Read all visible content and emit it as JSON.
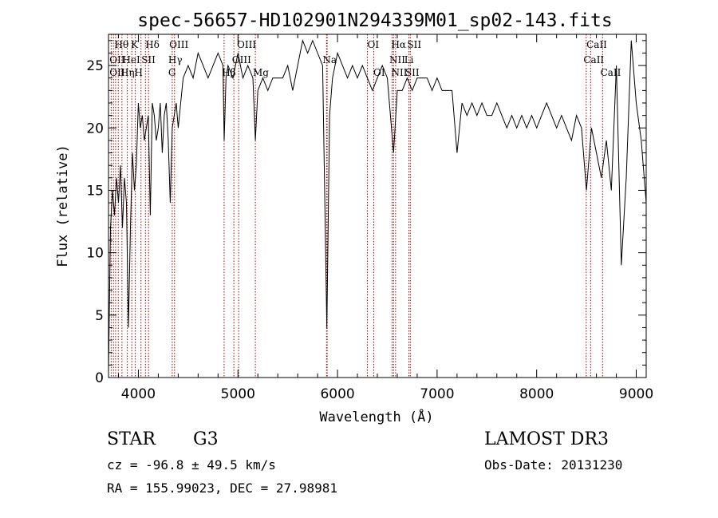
{
  "chart_data": {
    "type": "line",
    "title": "spec-56657-HD102901N294339M01_sp02-143.fits",
    "xlabel": "Wavelength (Å)",
    "ylabel": "Flux (relative)",
    "xlim": [
      3700,
      9100
    ],
    "ylim": [
      0,
      27.5
    ],
    "xticks": [
      4000,
      5000,
      6000,
      7000,
      8000,
      9000
    ],
    "yticks": [
      0,
      5,
      10,
      15,
      20,
      25
    ],
    "grid": false,
    "series": [
      {
        "x": [
          3700,
          3720,
          3740,
          3760,
          3780,
          3800,
          3820,
          3840,
          3860,
          3880,
          3900,
          3920,
          3940,
          3960,
          3980,
          4000,
          4020,
          4040,
          4060,
          4080,
          4100,
          4120,
          4140,
          4160,
          4180,
          4200,
          4220,
          4240,
          4260,
          4280,
          4300,
          4320,
          4340,
          4360,
          4380,
          4400,
          4450,
          4500,
          4550,
          4600,
          4650,
          4700,
          4750,
          4800,
          4850,
          4862,
          4880,
          4900,
          4950,
          5000,
          5050,
          5100,
          5150,
          5175,
          5200,
          5250,
          5300,
          5350,
          5400,
          5450,
          5500,
          5550,
          5600,
          5650,
          5700,
          5750,
          5800,
          5850,
          5893,
          5920,
          5950,
          6000,
          6050,
          6100,
          6150,
          6200,
          6250,
          6300,
          6350,
          6400,
          6450,
          6500,
          6563,
          6600,
          6650,
          6700,
          6750,
          6800,
          6850,
          6900,
          6950,
          7000,
          7050,
          7100,
          7150,
          7200,
          7250,
          7300,
          7350,
          7400,
          7450,
          7500,
          7550,
          7600,
          7650,
          7700,
          7750,
          7800,
          7850,
          7900,
          7950,
          8000,
          8050,
          8100,
          8150,
          8200,
          8250,
          8300,
          8350,
          8400,
          8450,
          8500,
          8550,
          8600,
          8650,
          8700,
          8750,
          8800,
          8850,
          8900,
          8950,
          9000,
          9050,
          9100
        ],
        "y": [
          0.5,
          12,
          15,
          13,
          16,
          14,
          17,
          12,
          16,
          14,
          4,
          12,
          18,
          15,
          17,
          22,
          20,
          21,
          19,
          20,
          21,
          13,
          22,
          21,
          19,
          20,
          22,
          18,
          21,
          22,
          19,
          14,
          20,
          21,
          22,
          20,
          24,
          25,
          24,
          26,
          25,
          24,
          25,
          26,
          25,
          19,
          24,
          25,
          24,
          26,
          24,
          25,
          24,
          19,
          23,
          24,
          23,
          24,
          24,
          24,
          25,
          23,
          25,
          27,
          26,
          27,
          26,
          25,
          4,
          21,
          24,
          26,
          25,
          24,
          25,
          24,
          25,
          24,
          23,
          24,
          25,
          24,
          18,
          23,
          23,
          24,
          23,
          24,
          24,
          24,
          23,
          24,
          23,
          23,
          23,
          18,
          22,
          21,
          22,
          21,
          22,
          21,
          21,
          22,
          21,
          20,
          21,
          20,
          21,
          20,
          21,
          20,
          21,
          22,
          21,
          20,
          21,
          20,
          19,
          21,
          20,
          15,
          20,
          18,
          16,
          19,
          15,
          25,
          9,
          16,
          27,
          22,
          19,
          14
        ]
      }
    ],
    "line_marker_wavelengths": [
      3727,
      3750,
      3771,
      3798,
      3835,
      3889,
      3934,
      3969,
      4026,
      4071,
      4102,
      4340,
      4363,
      4861,
      4959,
      5007,
      5175,
      5890,
      5896,
      6300,
      6364,
      6548,
      6563,
      6583,
      6717,
      6731,
      8498,
      8542,
      8662
    ]
  },
  "line_labels": [
    {
      "text": "Hθ",
      "wl": 3760,
      "row": 0
    },
    {
      "text": "K",
      "wl": 3925,
      "row": 0
    },
    {
      "text": "Hδ",
      "wl": 4070,
      "row": 0
    },
    {
      "text": "OIII",
      "wl": 4310,
      "row": 0
    },
    {
      "text": "OIII",
      "wl": 4990,
      "row": 0
    },
    {
      "text": "OI",
      "wl": 6300,
      "row": 0
    },
    {
      "text": "Hα",
      "wl": 6540,
      "row": 0
    },
    {
      "text": "SII",
      "wl": 6700,
      "row": 0
    },
    {
      "text": "CaII",
      "wl": 8500,
      "row": 0
    },
    {
      "text": "OII",
      "wl": 3710,
      "row": 1
    },
    {
      "text": "HeI",
      "wl": 3840,
      "row": 1
    },
    {
      "text": "SII",
      "wl": 4030,
      "row": 1
    },
    {
      "text": "Hγ",
      "wl": 4300,
      "row": 1
    },
    {
      "text": "OIII",
      "wl": 4940,
      "row": 1
    },
    {
      "text": "Na",
      "wl": 5850,
      "row": 1
    },
    {
      "text": "NII",
      "wl": 6520,
      "row": 1
    },
    {
      "text": "Li",
      "wl": 6670,
      "row": 1
    },
    {
      "text": "CaII",
      "wl": 8470,
      "row": 1
    },
    {
      "text": "OII",
      "wl": 3710,
      "row": 2
    },
    {
      "text": "Hη",
      "wl": 3820,
      "row": 2
    },
    {
      "text": "H",
      "wl": 3960,
      "row": 2
    },
    {
      "text": "G",
      "wl": 4300,
      "row": 2
    },
    {
      "text": "Hβ",
      "wl": 4840,
      "row": 2
    },
    {
      "text": "Mg",
      "wl": 5150,
      "row": 2
    },
    {
      "text": "OI",
      "wl": 6360,
      "row": 2
    },
    {
      "text": "NII",
      "wl": 6540,
      "row": 2
    },
    {
      "text": "SII",
      "wl": 6680,
      "row": 2
    },
    {
      "text": "CaII",
      "wl": 8640,
      "row": 2
    }
  ],
  "footer": {
    "object_class": "STAR",
    "subclass": "G3",
    "survey": "LAMOST DR3",
    "cz": "cz = -96.8 ± 49.5 km/s",
    "obs_date": "Obs-Date: 20131230",
    "coords": "RA = 155.99023, DEC =  27.98981"
  },
  "colors": {
    "spectrum": "#000000",
    "line_marker": "#aa0000",
    "axes": "#000000"
  }
}
